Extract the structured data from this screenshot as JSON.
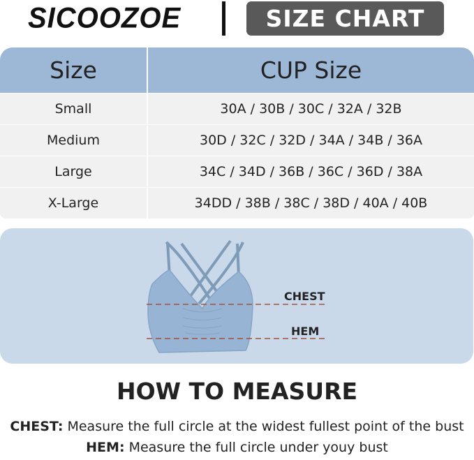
{
  "header": {
    "brand": "SICOOZOE",
    "badge": "SIZE CHART"
  },
  "table": {
    "columns": [
      "Size",
      "CUP Size"
    ],
    "rows": [
      [
        "Small",
        "30A / 30B / 30C / 32A / 32B"
      ],
      [
        "Medium",
        "30D / 32C / 32D / 34A / 34B / 36A"
      ],
      [
        "Large",
        "34C / 34D / 36B / 36C / 36D / 38A"
      ],
      [
        "X-Large",
        "34DD / 38B / 38C / 38D / 40A / 40B"
      ]
    ]
  },
  "diagram": {
    "chest_label": "CHEST",
    "hem_label": "HEM"
  },
  "measure": {
    "title": "HOW TO MEASURE",
    "chest_term": "CHEST:",
    "chest_text": " Measure the full circle at the widest fullest point of the bust",
    "hem_term": "HEM:",
    "hem_text": " Measure the full circle under youy bust"
  },
  "colors": {
    "header_blue": "#9db8d6",
    "panel_blue": "#c9d9ea",
    "row_gray": "#f1f1f1",
    "badge": "#595959",
    "dash": "#a0533f"
  }
}
